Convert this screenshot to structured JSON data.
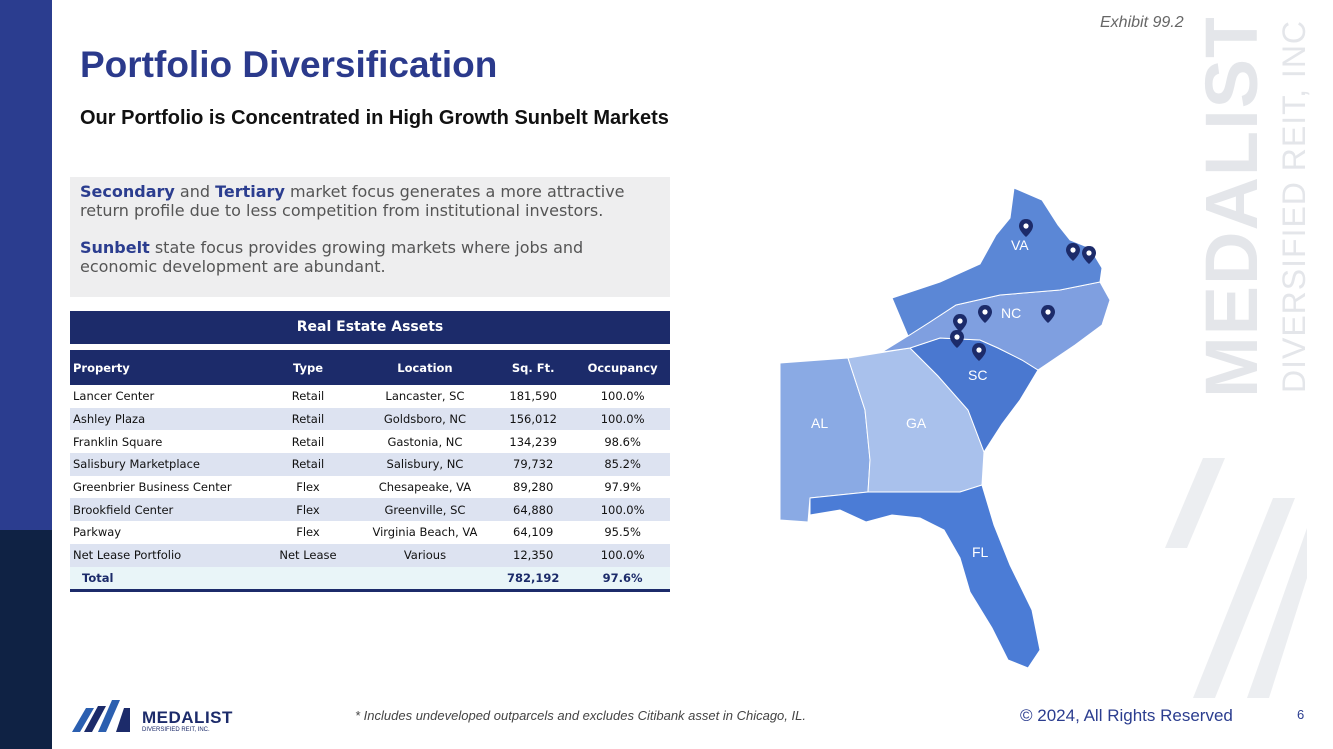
{
  "header": {
    "exhibit": "Exhibit 99.2",
    "title": "Portfolio Diversification",
    "subtitle": "Our Portfolio is Concentrated in High Growth Sunbelt Markets"
  },
  "callout": {
    "p1_kw1": "Secondary",
    "p1_and": " and ",
    "p1_kw2": "Tertiary",
    "p1_rest": " market focus generates a more attractive return profile due to less competition from institutional investors.",
    "p2_kw": "Sunbelt",
    "p2_rest": " state focus provides growing markets where jobs and economic development are abundant."
  },
  "table": {
    "title": "Real Estate Assets",
    "columns": [
      "Property",
      "Type",
      "Location",
      "Sq. Ft.",
      "Occupancy"
    ],
    "rows": [
      [
        "Lancer Center",
        "Retail",
        "Lancaster, SC",
        "181,590",
        "100.0%"
      ],
      [
        "Ashley Plaza",
        "Retail",
        "Goldsboro, NC",
        "156,012",
        "100.0%"
      ],
      [
        "Franklin Square",
        "Retail",
        "Gastonia, NC",
        "134,239",
        "98.6%"
      ],
      [
        "Salisbury Marketplace",
        "Retail",
        "Salisbury, NC",
        "79,732",
        "85.2%"
      ],
      [
        "Greenbrier Business Center",
        "Flex",
        "Chesapeake, VA",
        "89,280",
        "97.9%"
      ],
      [
        "Brookfield Center",
        "Flex",
        "Greenville, SC",
        "64,880",
        "100.0%"
      ],
      [
        "Parkway",
        "Flex",
        "Virginia Beach, VA",
        "64,109",
        "95.5%"
      ],
      [
        "Net Lease Portfolio",
        "Net Lease",
        "Various",
        "12,350",
        "100.0%"
      ]
    ],
    "total": {
      "label": "Total",
      "sqft": "782,192",
      "occupancy": "97.6%"
    }
  },
  "map": {
    "states": {
      "va": "VA",
      "nc": "NC",
      "sc": "SC",
      "ga": "GA",
      "al": "AL",
      "fl": "FL"
    },
    "colors": {
      "va": "#5b87d6",
      "nc": "#7f9fe0",
      "sc": "#4a78d0",
      "ga": "#a9c1ec",
      "al": "#8aaae4",
      "fl": "#4b7cd6",
      "pin": "#1c2b6a"
    }
  },
  "watermark": {
    "line1": "MEDALIST",
    "line2": "DIVERSIFIED REIT, INC."
  },
  "footer": {
    "logo_name": "MEDALIST",
    "logo_sub": "DIVERSIFIED REIT, INC.",
    "footnote": "* Includes undeveloped outparcels and excludes Citibank asset in Chicago, IL.",
    "copyright": "© 2024, All Rights Reserved",
    "page": "6"
  }
}
